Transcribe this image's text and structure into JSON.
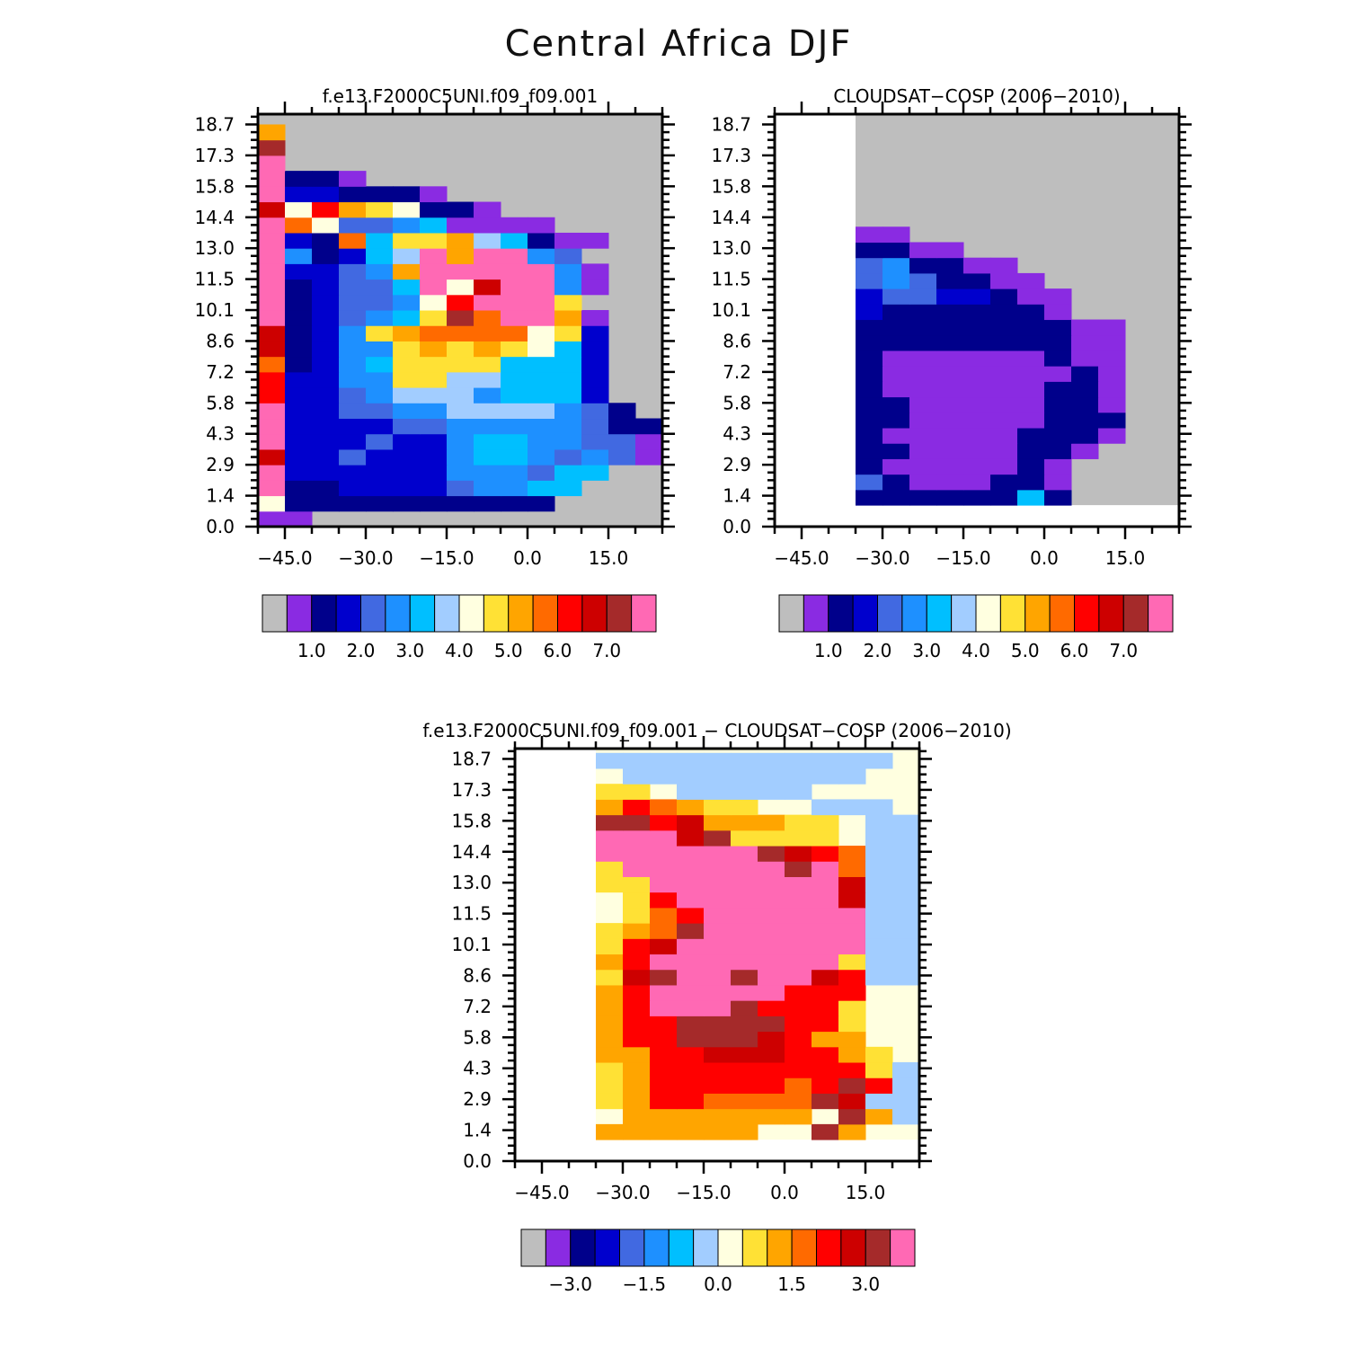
{
  "title": "Central Africa DJF",
  "palette": [
    "#bebebe",
    "#8a2be2",
    "#00008b",
    "#0000cd",
    "#4169e1",
    "#1e90ff",
    "#00bfff",
    "#a2cdff",
    "#ffffe0",
    "#ffe135",
    "#ffa500",
    "#ff6a00",
    "#ff0000",
    "#cd0000",
    "#a52a2a",
    "#ff69b4"
  ],
  "chart_data": [
    {
      "type": "heatmap",
      "title": "f.e13.F2000C5UNI.f09_f09.001",
      "x_tick_labels": [
        "-45.0",
        "-30.0",
        "-15.0",
        "0.0",
        "15.0"
      ],
      "x_ticks": [
        -45,
        -30,
        -15,
        0,
        15
      ],
      "xlim": [
        -50,
        25
      ],
      "y_tick_labels": [
        "0.0",
        "1.4",
        "2.9",
        "4.3",
        "5.8",
        "7.2",
        "8.6",
        "10.1",
        "11.5",
        "13.0",
        "14.4",
        "15.8",
        "17.3",
        "18.7"
      ],
      "y_ticks": [
        0,
        1.44,
        2.88,
        4.32,
        5.76,
        7.2,
        8.64,
        10.08,
        11.52,
        12.96,
        14.4,
        15.84,
        17.28,
        18.72
      ],
      "ylim": [
        0,
        19.2
      ],
      "colorbar_labels": [
        "1.0",
        "2.0",
        "3.0",
        "4.0",
        "5.0",
        "6.0",
        "7.0"
      ],
      "colorbar_levels": [
        1.0,
        2.0,
        3.0,
        4.0,
        5.0,
        6.0,
        7.0
      ],
      "x_start": -50,
      "dx": 5,
      "y_start": 0,
      "dy": 0.72,
      "grid": [
        "PPPPPPPPPPP",
        "PPPPPPPPPPP",
        "PPPPPPPPPPP",
        "PPPPPPPPPPP",
        "PPPPPPPPPPP",
        "PPPPPPPPPPP",
        "PPPPPPPPPPP",
        "PPPPPPPPPPP",
        "PPPPPPPPPPP",
        "PPPPPPPPPPP",
        "PPPPPPPPPPP",
        "PPPPPPPPPPP",
        "PPPPPPPPPPP",
        "PPPPPPPPPPP",
        "PPPPPPPPPPP",
        "PPPPPPPPPPP",
        "PPPPPPPPPPP",
        "PPPPPPPPPPP",
        "PPPPPPPPPPP",
        "PPPPPPPPPPP",
        "PPPPPPPPPPP",
        "PPPPPPPPPPP",
        "PPPPPPPPPPP",
        "PPPPPPPPPPP",
        "PPPPPPPPPPP",
        "PPPPPPPPPPP"
      ],
      "cells": [
        [
          0,
          26,
          "G"
        ],
        [
          0,
          1,
          "V"
        ],
        [
          0,
          2,
          "L"
        ],
        [
          0,
          3,
          "P"
        ],
        [
          0,
          4,
          "P"
        ],
        [
          0,
          5,
          "P"
        ],
        [
          0,
          6,
          "P"
        ],
        [
          0,
          7,
          "P"
        ],
        [
          0,
          8,
          "P"
        ],
        [
          0,
          9,
          "P"
        ],
        [
          0,
          10,
          "P"
        ],
        [
          0,
          11,
          "P"
        ],
        [
          0,
          12,
          "P"
        ],
        [
          0,
          13,
          "P"
        ],
        [
          0,
          14,
          "P"
        ],
        [
          0,
          15,
          "P"
        ],
        [
          0,
          16,
          "P"
        ],
        [
          0,
          17,
          "P"
        ],
        [
          0,
          18,
          "P"
        ],
        [
          0,
          19,
          "P"
        ],
        [
          0,
          20,
          "P"
        ],
        [
          0,
          21,
          "P"
        ],
        [
          0,
          22,
          "P"
        ],
        [
          0,
          23,
          "P"
        ],
        [
          0,
          24,
          "P"
        ],
        [
          0,
          25,
          "P"
        ]
      ]
    },
    {
      "type": "heatmap",
      "title": "CLOUDSAT-COSP (2006-2010)",
      "x_tick_labels": [
        "-45.0",
        "-30.0",
        "-15.0",
        "0.0",
        "15.0"
      ],
      "x_ticks": [
        -45,
        -30,
        -15,
        0,
        15
      ],
      "xlim": [
        -50,
        25
      ],
      "y_tick_labels": [
        "0.0",
        "1.4",
        "2.9",
        "4.3",
        "5.8",
        "7.2",
        "8.6",
        "10.1",
        "11.5",
        "13.0",
        "14.4",
        "15.8",
        "17.3",
        "18.7"
      ],
      "y_ticks": [
        0,
        1.44,
        2.88,
        4.32,
        5.76,
        7.2,
        8.64,
        10.08,
        11.52,
        12.96,
        14.4,
        15.84,
        17.28,
        18.72
      ],
      "ylim": [
        0,
        19.2
      ],
      "colorbar_labels": [
        "1.0",
        "2.0",
        "3.0",
        "4.0",
        "5.0",
        "6.0",
        "7.0"
      ],
      "colorbar_levels": [
        1.0,
        2.0,
        3.0,
        4.0,
        5.0,
        6.0,
        7.0
      ]
    },
    {
      "type": "heatmap",
      "title": "f.e13.F2000C5UNI.f09_f09.001 - CLOUDSAT-COSP (2006-2010)",
      "x_tick_labels": [
        "-45.0",
        "-30.0",
        "-15.0",
        "0.0",
        "15.0"
      ],
      "x_ticks": [
        -45,
        -30,
        -15,
        0,
        15
      ],
      "xlim": [
        -50,
        25
      ],
      "y_tick_labels": [
        "0.0",
        "1.4",
        "2.9",
        "4.3",
        "5.8",
        "7.2",
        "8.6",
        "10.1",
        "11.5",
        "13.0",
        "14.4",
        "15.8",
        "17.3",
        "18.7"
      ],
      "y_ticks": [
        0,
        1.44,
        2.88,
        4.32,
        5.76,
        7.2,
        8.64,
        10.08,
        11.52,
        12.96,
        14.4,
        15.84,
        17.28,
        18.72
      ],
      "ylim": [
        0,
        19.2
      ],
      "colorbar_labels": [
        "-3.0",
        "-1.5",
        "0.0",
        "1.5",
        "3.0"
      ],
      "colorbar_levels": [
        -3.0,
        -1.5,
        0.0,
        1.5,
        3.0
      ]
    }
  ]
}
